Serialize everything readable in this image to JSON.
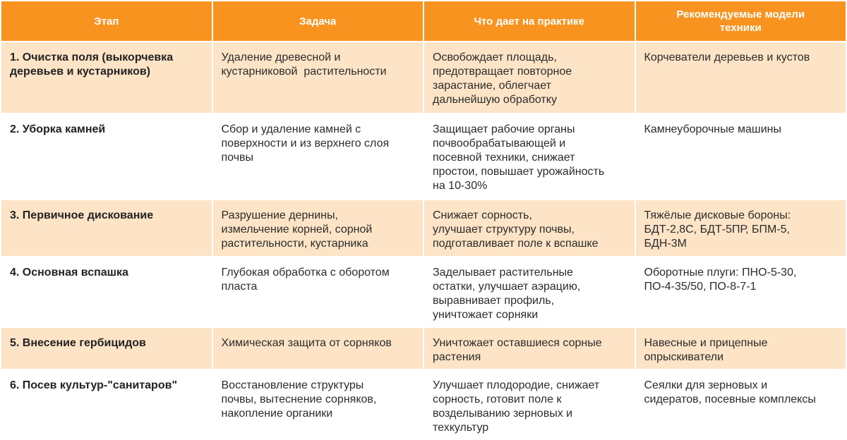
{
  "table": {
    "header": [
      [
        "Этап"
      ],
      [
        "Задача"
      ],
      [
        "Что дает на практике"
      ],
      [
        "Рекомендуемые модели",
        "техники"
      ]
    ],
    "rows": [
      [
        [
          "1. Очистка поля (выкорчевка",
          "деревьев и кустарников)"
        ],
        [
          "Удаление древесной и",
          "кустарниковой  растительности"
        ],
        [
          "Освобождает площадь,",
          "предотвращает повторное",
          "зарастание, облегчает",
          "дальнейшую обработку"
        ],
        [
          "Корчеватели деревьев и кустов"
        ]
      ],
      [
        [
          "2. Уборка камней"
        ],
        [
          "Сбор и удаление камней с",
          "поверхности и из верхнего слоя",
          "почвы"
        ],
        [
          "Защищает рабочие органы",
          "почвообрабатывающей и",
          "посевной техники, снижает",
          "простои, повышает урожайность",
          "на 10-30%"
        ],
        [
          "Камнеуборочные машины"
        ]
      ],
      [
        [
          "3. Первичное дискование"
        ],
        [
          "Разрушение дернины,",
          "измельчение корней, сорной",
          "растительности, кустарника"
        ],
        [
          "Снижает сорность,",
          "улучшает структуру почвы,",
          "подготавливает поле к вспашке"
        ],
        [
          "Тяжёлые дисковые бороны:",
          "БДТ-2,8С, БДТ-5ПР, БПМ-5,",
          "БДН-3М"
        ]
      ],
      [
        [
          "4. Основная вспашка"
        ],
        [
          "Глубокая обработка с оборотом",
          "пласта"
        ],
        [
          "Заделывает растительные",
          "остатки, улучшает аэрацию,",
          "выравнивает профиль,",
          "уничтожает сорняки"
        ],
        [
          "Оборотные плуги: ПНО-5-30,",
          "ПО-4-35/50, ПО-8-7-1"
        ]
      ],
      [
        [
          "5. Внесение гербицидов"
        ],
        [
          "Химическая защита от сорняков"
        ],
        [
          "Уничтожает оставшиеся сорные",
          "растения"
        ],
        [
          "Навесные и прицепные",
          "опрыскиватели"
        ]
      ],
      [
        [
          "6. Посев культур-\"санитаров\""
        ],
        [
          "Восстановление структуры",
          "почвы, вытеснение сорняков,",
          "накопление органики"
        ],
        [
          "Улучшает плодородие, снижает",
          "сорность, готовит поле к",
          "возделыванию зерновых и",
          "техкультур"
        ],
        [
          "Сеялки для зерновых и",
          "сидератов, посевные комплексы"
        ]
      ]
    ]
  }
}
